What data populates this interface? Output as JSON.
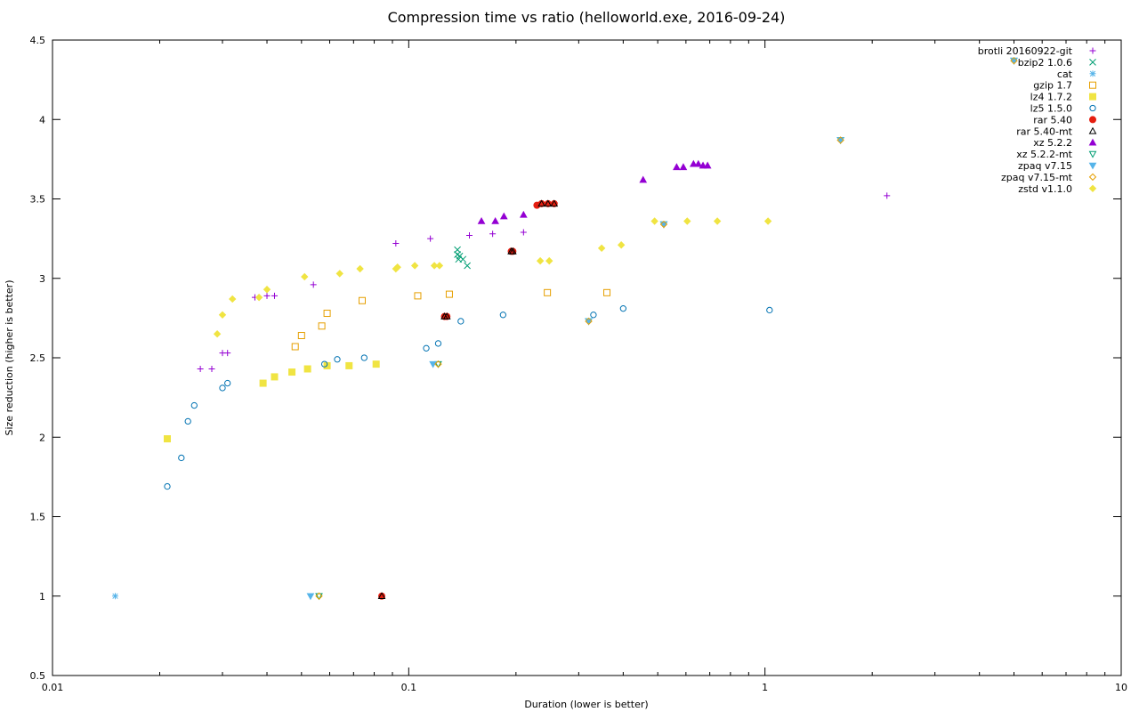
{
  "chart_data": {
    "type": "scatter",
    "title": "Compression time vs ratio (helloworld.exe, 2016-09-24)",
    "xlabel": "Duration (lower is better)",
    "ylabel": "Size reduction (higher is better)",
    "x_scale": "log",
    "xlim": [
      0.01,
      10
    ],
    "ylim": [
      0.5,
      4.5
    ],
    "x_ticks": [
      "0.01",
      "0.1",
      "1",
      "10"
    ],
    "y_ticks": [
      "0.5",
      "1",
      "1.5",
      "2",
      "2.5",
      "3",
      "3.5",
      "4",
      "4.5"
    ],
    "grid": false,
    "legend_position": "top-right",
    "series": [
      {
        "name": "brotli 20160922-git",
        "color": "#9400d3",
        "marker": "plus",
        "points": [
          [
            0.026,
            2.43
          ],
          [
            0.028,
            2.43
          ],
          [
            0.03,
            2.53
          ],
          [
            0.031,
            2.53
          ],
          [
            0.037,
            2.88
          ],
          [
            0.04,
            2.89
          ],
          [
            0.042,
            2.89
          ],
          [
            0.054,
            2.96
          ],
          [
            0.092,
            3.22
          ],
          [
            0.115,
            3.25
          ],
          [
            0.148,
            3.27
          ],
          [
            0.172,
            3.28
          ],
          [
            0.21,
            3.29
          ],
          [
            2.2,
            3.52
          ]
        ]
      },
      {
        "name": "bzip2 1.0.6",
        "color": "#009e73",
        "marker": "x",
        "points": [
          [
            0.137,
            3.18
          ],
          [
            0.137,
            3.15
          ],
          [
            0.138,
            3.12
          ],
          [
            0.139,
            3.14
          ],
          [
            0.142,
            3.12
          ],
          [
            0.146,
            3.08
          ]
        ]
      },
      {
        "name": "cat",
        "color": "#56b4e9",
        "marker": "star",
        "points": [
          [
            0.015,
            1.0
          ]
        ]
      },
      {
        "name": "gzip 1.7",
        "color": "#e69f00",
        "marker": "square-open",
        "points": [
          [
            0.048,
            2.57
          ],
          [
            0.05,
            2.64
          ],
          [
            0.057,
            2.7
          ],
          [
            0.059,
            2.78
          ],
          [
            0.074,
            2.86
          ],
          [
            0.106,
            2.89
          ],
          [
            0.13,
            2.9
          ],
          [
            0.245,
            2.91
          ],
          [
            0.36,
            2.91
          ]
        ]
      },
      {
        "name": "lz4 1.7.2",
        "color": "#f0e442",
        "marker": "square",
        "points": [
          [
            0.021,
            1.99
          ],
          [
            0.039,
            2.34
          ],
          [
            0.042,
            2.38
          ],
          [
            0.047,
            2.41
          ],
          [
            0.052,
            2.43
          ],
          [
            0.059,
            2.45
          ],
          [
            0.068,
            2.45
          ],
          [
            0.081,
            2.46
          ]
        ]
      },
      {
        "name": "lz5 1.5.0",
        "color": "#0072b2",
        "marker": "circle-open",
        "points": [
          [
            0.021,
            1.69
          ],
          [
            0.023,
            1.87
          ],
          [
            0.024,
            2.1
          ],
          [
            0.025,
            2.2
          ],
          [
            0.03,
            2.31
          ],
          [
            0.031,
            2.34
          ],
          [
            0.058,
            2.46
          ],
          [
            0.063,
            2.49
          ],
          [
            0.075,
            2.5
          ],
          [
            0.112,
            2.56
          ],
          [
            0.121,
            2.59
          ],
          [
            0.14,
            2.73
          ],
          [
            0.184,
            2.77
          ],
          [
            0.33,
            2.77
          ],
          [
            0.4,
            2.81
          ],
          [
            1.03,
            2.8
          ]
        ]
      },
      {
        "name": "rar 5.40",
        "color": "#e51e10",
        "marker": "circle",
        "points": [
          [
            0.084,
            1.0
          ],
          [
            0.126,
            2.76
          ],
          [
            0.128,
            2.76
          ],
          [
            0.194,
            3.17
          ],
          [
            0.196,
            3.17
          ],
          [
            0.229,
            3.46
          ],
          [
            0.236,
            3.47
          ],
          [
            0.246,
            3.47
          ],
          [
            0.256,
            3.47
          ]
        ]
      },
      {
        "name": "rar 5.40-mt",
        "color": "#000000",
        "marker": "triangle-open",
        "points": [
          [
            0.084,
            1.0
          ],
          [
            0.126,
            2.76
          ],
          [
            0.128,
            2.76
          ],
          [
            0.194,
            3.17
          ],
          [
            0.196,
            3.17
          ],
          [
            0.236,
            3.47
          ],
          [
            0.246,
            3.47
          ],
          [
            0.256,
            3.47
          ]
        ]
      },
      {
        "name": "xz 5.2.2",
        "color": "#9400d3",
        "marker": "triangle",
        "points": [
          [
            0.16,
            3.36
          ],
          [
            0.175,
            3.36
          ],
          [
            0.185,
            3.39
          ],
          [
            0.21,
            3.4
          ],
          [
            0.455,
            3.62
          ],
          [
            0.565,
            3.7
          ],
          [
            0.59,
            3.7
          ],
          [
            0.63,
            3.72
          ],
          [
            0.65,
            3.72
          ],
          [
            0.67,
            3.71
          ],
          [
            0.69,
            3.71
          ]
        ]
      },
      {
        "name": "xz 5.2.2-mt",
        "color": "#009e73",
        "marker": "triangle-down-open",
        "points": [
          [
            0.056,
            1.0
          ],
          [
            0.121,
            2.46
          ],
          [
            0.32,
            2.73
          ],
          [
            0.52,
            3.34
          ],
          [
            1.63,
            3.87
          ],
          [
            5.0,
            4.37
          ]
        ]
      },
      {
        "name": "zpaq v7.15",
        "color": "#56b4e9",
        "marker": "triangle-down",
        "points": [
          [
            0.053,
            1.0
          ],
          [
            0.117,
            2.46
          ],
          [
            0.32,
            2.73
          ],
          [
            0.52,
            3.34
          ],
          [
            1.63,
            3.87
          ],
          [
            5.0,
            4.37
          ]
        ]
      },
      {
        "name": "zpaq v7.15-mt",
        "color": "#e69f00",
        "marker": "diamond-open",
        "points": [
          [
            0.056,
            1.0
          ],
          [
            0.121,
            2.46
          ],
          [
            0.32,
            2.73
          ],
          [
            0.52,
            3.34
          ],
          [
            1.63,
            3.87
          ],
          [
            5.0,
            4.37
          ]
        ]
      },
      {
        "name": "zstd v1.1.0",
        "color": "#f0e442",
        "marker": "diamond",
        "points": [
          [
            0.029,
            2.65
          ],
          [
            0.03,
            2.77
          ],
          [
            0.032,
            2.87
          ],
          [
            0.038,
            2.88
          ],
          [
            0.04,
            2.93
          ],
          [
            0.051,
            3.01
          ],
          [
            0.064,
            3.03
          ],
          [
            0.073,
            3.06
          ],
          [
            0.092,
            3.06
          ],
          [
            0.093,
            3.07
          ],
          [
            0.104,
            3.08
          ],
          [
            0.118,
            3.08
          ],
          [
            0.122,
            3.08
          ],
          [
            0.234,
            3.11
          ],
          [
            0.248,
            3.11
          ],
          [
            0.348,
            3.19
          ],
          [
            0.395,
            3.21
          ],
          [
            0.49,
            3.36
          ],
          [
            0.605,
            3.36
          ],
          [
            0.735,
            3.36
          ],
          [
            1.02,
            3.36
          ]
        ]
      }
    ]
  }
}
